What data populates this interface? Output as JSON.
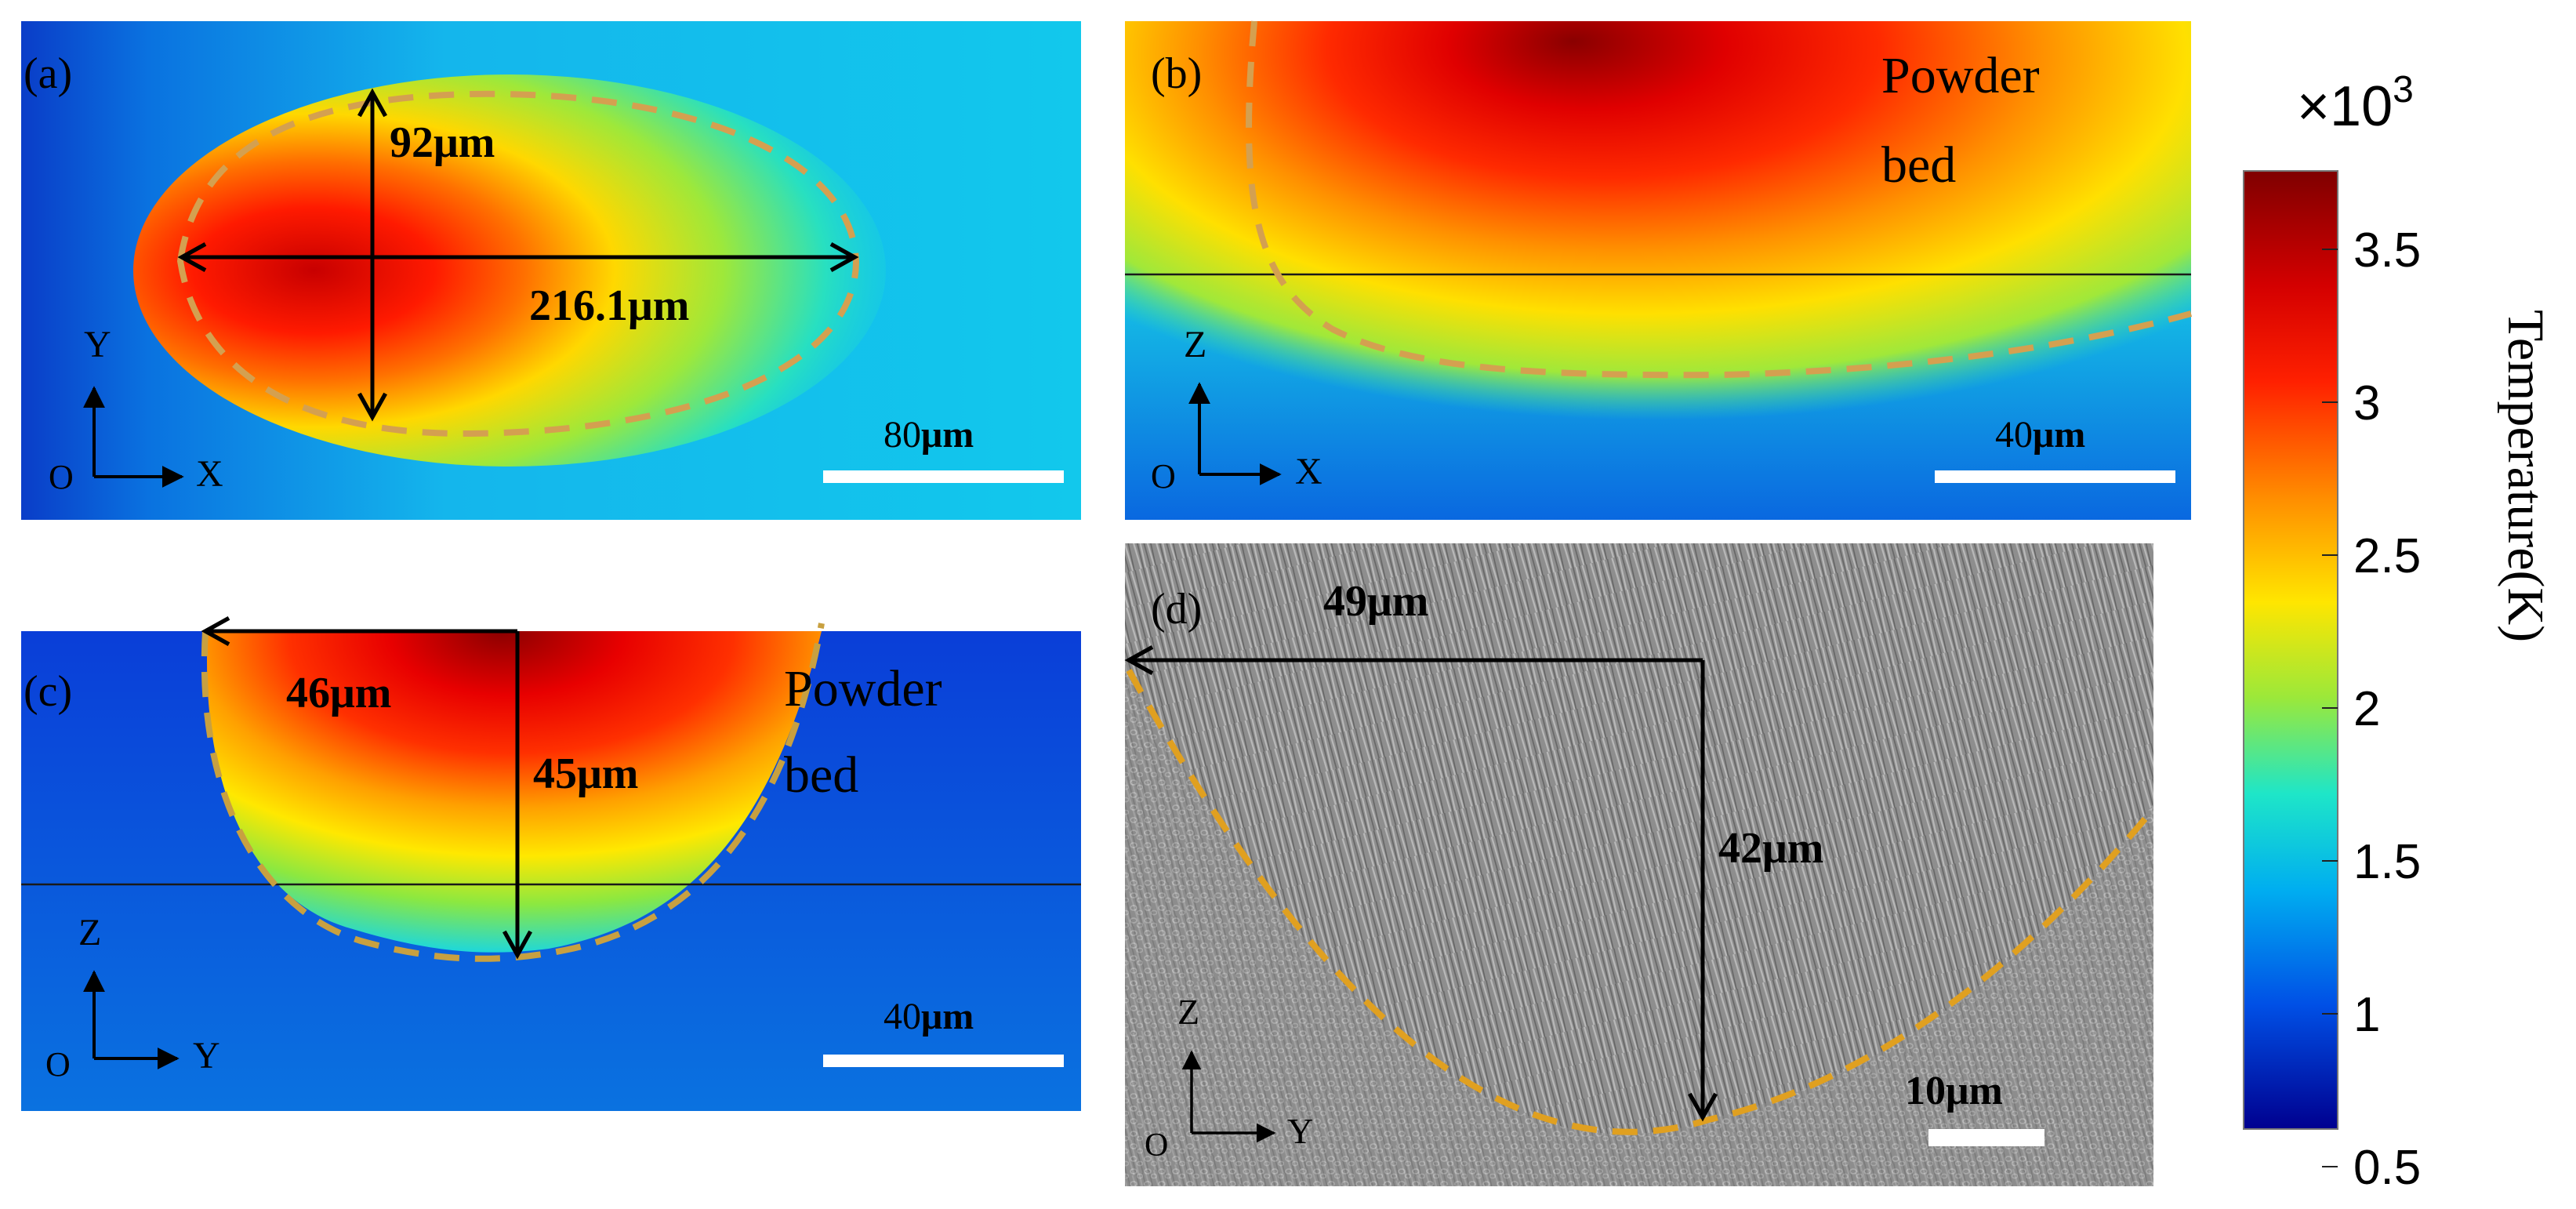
{
  "panels": {
    "a": {
      "label": "(a)",
      "dim_vertical": "92μm",
      "dim_horizontal": "216.1μm",
      "axis_vertical": "Y",
      "axis_horizontal": "X",
      "origin": "O",
      "scale_bar": {
        "number": "80",
        "unit": "μm"
      }
    },
    "b": {
      "label": "(b)",
      "region_line1": "Powder",
      "region_line2": "bed",
      "axis_vertical": "Z",
      "axis_horizontal": "X",
      "origin": "O",
      "scale_bar": {
        "number": "40",
        "unit": "μm"
      }
    },
    "c": {
      "label": "(c)",
      "dim_horizontal": "46μm",
      "dim_vertical": "45μm",
      "region_line1": "Powder",
      "region_line2": "bed",
      "axis_vertical": "Z",
      "axis_horizontal": "Y",
      "origin": "O",
      "scale_bar": {
        "number": "40",
        "unit": "μm"
      }
    },
    "d": {
      "label": "(d)",
      "dim_horizontal": "49μm",
      "dim_vertical": "42μm",
      "axis_vertical": "Z",
      "axis_horizontal": "Y",
      "origin": "O",
      "scale_bar": {
        "label": "10μm"
      }
    }
  },
  "colorbar": {
    "multiplier": "×10",
    "exponent": "3",
    "ticks": [
      "3.5",
      "3",
      "2.5",
      "2",
      "1.5",
      "1",
      "0.5"
    ],
    "title": "Temperature(K)",
    "colors": [
      "#7f0000",
      "#d40000",
      "#ff2000",
      "#ff8c00",
      "#ffe600",
      "#9be83a",
      "#1ee6c8",
      "#00aef0",
      "#0050e6",
      "#00008f"
    ]
  },
  "style": {
    "boundary_color": "#d4a050",
    "boundary_color_d": "#e0a020",
    "arrow_color": "#000000",
    "scale_bar_color": "#ffffff"
  }
}
